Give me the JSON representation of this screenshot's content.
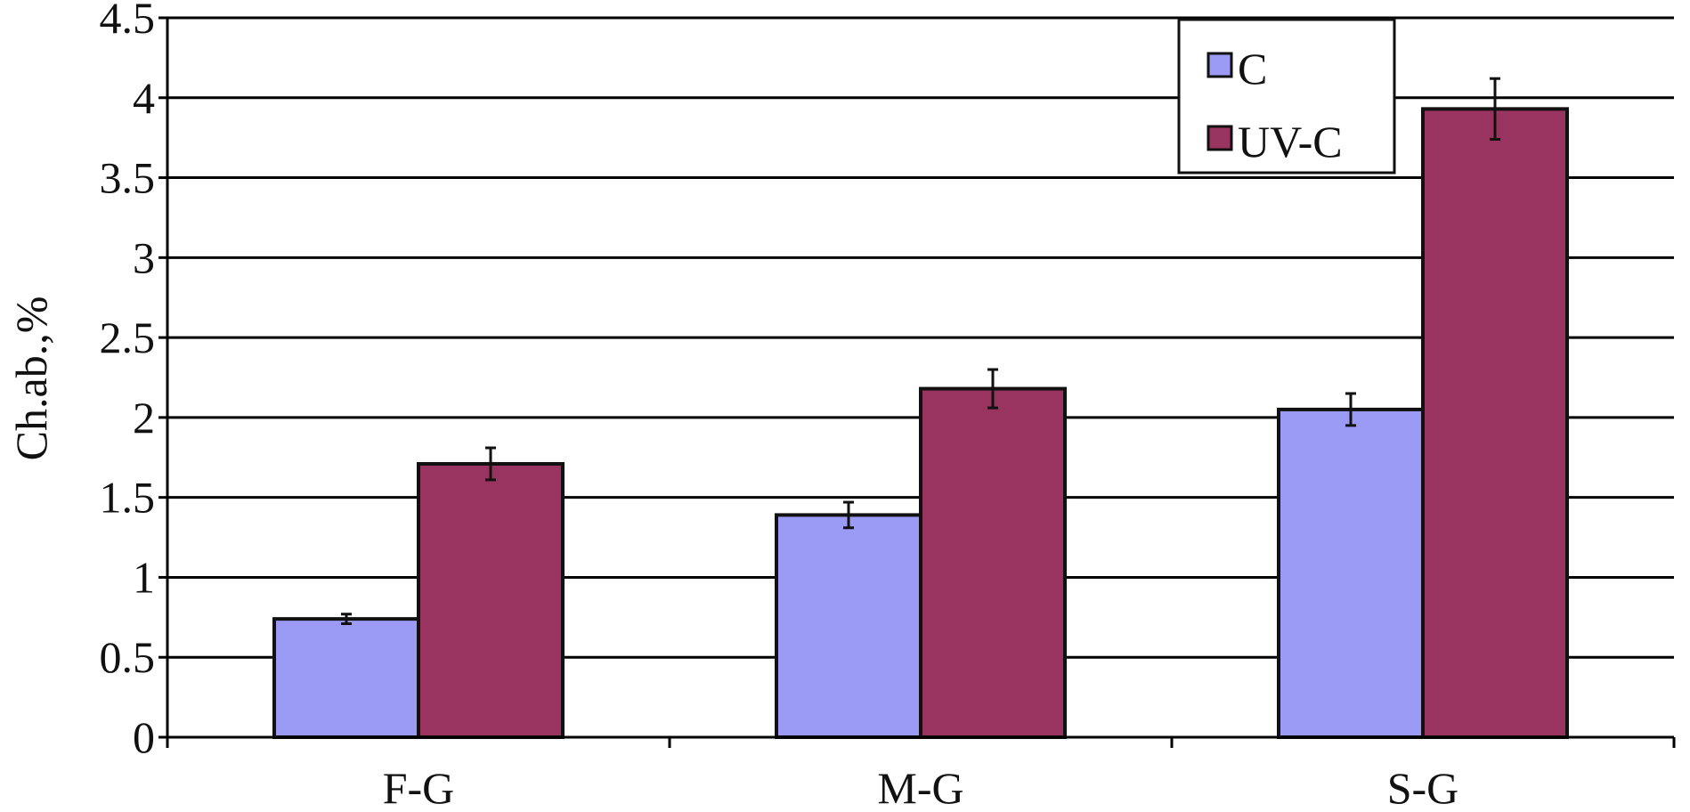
{
  "chart_data": {
    "type": "bar",
    "categories": [
      "F-G",
      "M-G",
      "S-G"
    ],
    "series": [
      {
        "name": "C",
        "values": [
          0.74,
          1.39,
          2.05
        ],
        "errors": [
          0.03,
          0.08,
          0.1
        ],
        "color": "#9b9bf5"
      },
      {
        "name": "UV-C",
        "values": [
          1.71,
          2.18,
          3.93
        ],
        "errors": [
          0.1,
          0.12,
          0.19
        ],
        "color": "#99335f"
      }
    ],
    "title": "",
    "xlabel": "",
    "ylabel": "Ch.ab.,%",
    "ylim": [
      0,
      4.5
    ],
    "yticks": [
      "0",
      "0.5",
      "1",
      "1.5",
      "2",
      "2.5",
      "3",
      "3.5",
      "4",
      "4.5"
    ],
    "grid": "horizontal",
    "legend": "top-right"
  }
}
